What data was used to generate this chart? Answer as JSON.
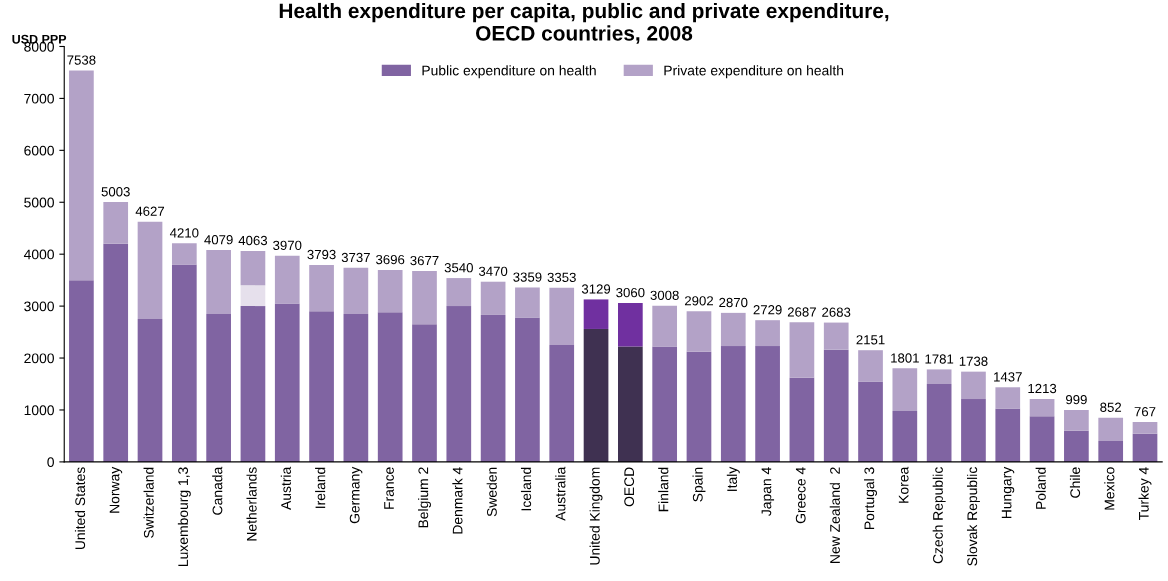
{
  "chart_data": {
    "type": "bar",
    "stacked": true,
    "title": "Health expenditure per capita, public and private expenditure,\nOECD countries, 2008",
    "ylabel": "USD PPP",
    "categories": [
      "United States",
      "Norway",
      "Switzerland",
      "Luxembourg 1,3",
      "Canada",
      "Netherlands",
      "Austria",
      "Ireland",
      "Germany",
      "France",
      "Belgium 2",
      "Denmark 4",
      "Sweden",
      "Iceland",
      "Australia",
      "United Kingdom",
      "OECD",
      "Finland",
      "Spain",
      "Italy",
      "Japan 4",
      "Greece 4",
      "New Zealand  2",
      "Portugal 3",
      "Korea",
      "Czech Republic",
      "Slovak Republic",
      "Hungary",
      "Poland",
      "Chile",
      "Mexico",
      "Turkey 4"
    ],
    "series": [
      {
        "name": "Public expenditure on health",
        "color": "#8064a2",
        "colors": [
          "#8064a2",
          "#8064a2",
          "#8064a2",
          "#8064a2",
          "#8064a2",
          "#8064a2",
          "#8064a2",
          "#8064a2",
          "#8064a2",
          "#8064a2",
          "#8064a2",
          "#8064a2",
          "#8064a2",
          "#8064a2",
          "#8064a2",
          "#3f3151",
          "#3f3151",
          "#8064a2",
          "#8064a2",
          "#8064a2",
          "#8064a2",
          "#8064a2",
          "#8064a2",
          "#8064a2",
          "#8064a2",
          "#8064a2",
          "#8064a2",
          "#8064a2",
          "#8064a2",
          "#8064a2",
          "#8064a2",
          "#8064a2"
        ],
        "values": [
          3500,
          4200,
          2750,
          3800,
          2850,
          3000,
          3050,
          2900,
          2850,
          2880,
          2650,
          3000,
          2830,
          2780,
          2250,
          2560,
          2220,
          2220,
          2120,
          2230,
          2230,
          1620,
          2160,
          1550,
          980,
          1500,
          1210,
          1030,
          880,
          600,
          400,
          540
        ]
      },
      {
        "color": "#e6e0ec",
        "values": [
          null,
          null,
          null,
          null,
          null,
          400,
          null,
          null,
          null,
          null,
          null,
          null,
          null,
          null,
          null,
          null,
          null,
          null,
          null,
          null,
          null,
          null,
          null,
          null,
          null,
          null,
          null,
          null,
          null,
          null,
          null,
          null
        ]
      },
      {
        "name": "Private expenditure on health",
        "color": "#b3a2c7",
        "colors": [
          "#b3a2c7",
          "#b3a2c7",
          "#b3a2c7",
          "#b3a2c7",
          "#b3a2c7",
          "#b3a2c7",
          "#b3a2c7",
          "#b3a2c7",
          "#b3a2c7",
          "#b3a2c7",
          "#b3a2c7",
          "#b3a2c7",
          "#b3a2c7",
          "#b3a2c7",
          "#b3a2c7",
          "#7030a0",
          "#7030a0",
          "#b3a2c7",
          "#b3a2c7",
          "#b3a2c7",
          "#b3a2c7",
          "#b3a2c7",
          "#b3a2c7",
          "#b3a2c7",
          "#b3a2c7",
          "#b3a2c7",
          "#b3a2c7",
          "#b3a2c7",
          "#b3a2c7",
          "#b3a2c7",
          "#b3a2c7",
          "#b3a2c7"
        ],
        "values": [
          4038,
          803,
          1877,
          410,
          1229,
          663,
          920,
          893,
          887,
          816,
          1027,
          540,
          640,
          579,
          1103,
          569,
          840,
          788,
          782,
          640,
          499,
          1067,
          523,
          601,
          821,
          281,
          528,
          407,
          333,
          399,
          452,
          227
        ]
      }
    ],
    "totals": [
      "7538",
      "5003",
      "4627",
      "4210",
      "4079",
      "4063",
      "3970",
      "3793",
      "3737",
      "3696",
      "3677",
      "3540",
      "3470",
      "3359",
      "3353",
      "3129",
      "3060",
      "3008",
      "2902",
      "2870",
      "2729",
      "2687",
      "2683",
      "2151",
      "1801",
      "1781",
      "1738",
      "1437",
      "1213",
      "999",
      "852",
      "767"
    ],
    "ylim": [
      0,
      8000
    ],
    "yticks": [
      0,
      1000,
      2000,
      3000,
      4000,
      5000,
      6000,
      7000,
      8000
    ],
    "grid": false,
    "legend": "top"
  }
}
